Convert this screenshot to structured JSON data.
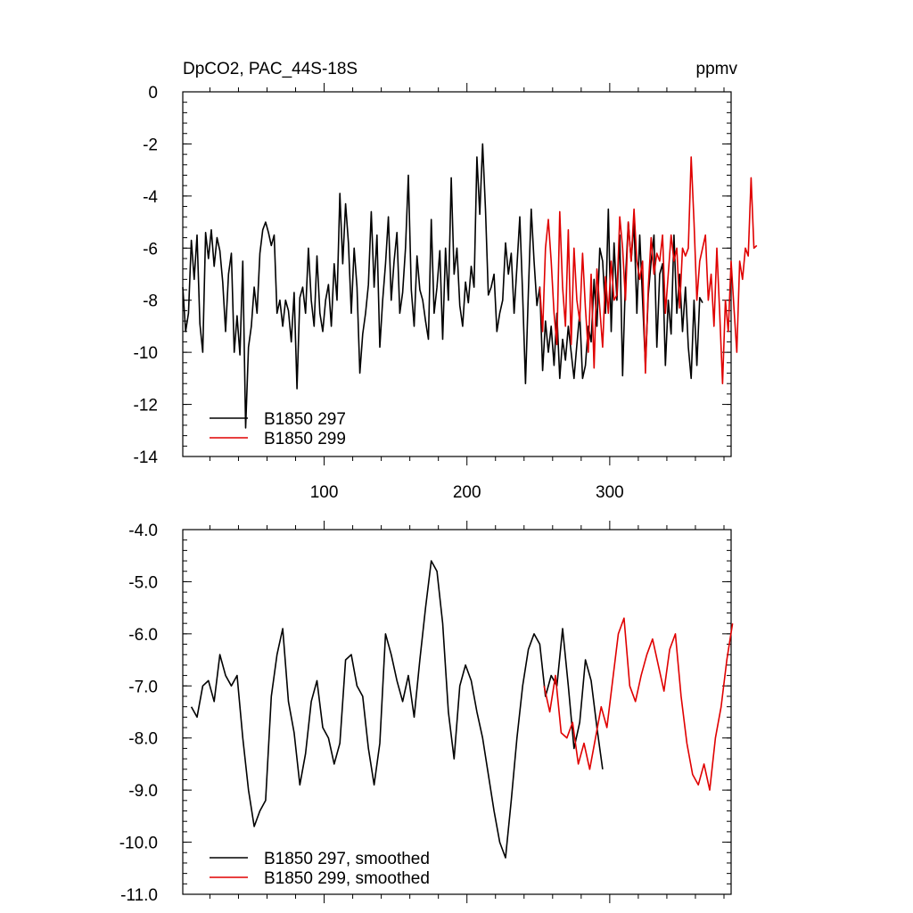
{
  "figure": {
    "title_left": "DpCO2, PAC_44S-18S",
    "title_right": "ppmv"
  },
  "colors": {
    "series_a": "#000000",
    "series_b": "#e00000",
    "axis": "#000000"
  },
  "chart_data": [
    {
      "type": "line",
      "panel": "top",
      "title": "DpCO2, PAC_44S-18S",
      "units": "ppmv",
      "xlim": [
        1,
        385
      ],
      "ylim": [
        -14,
        0
      ],
      "x_ticks": [
        100,
        200,
        300
      ],
      "x_tick_labels": [
        "100",
        "200",
        "300"
      ],
      "y_ticks": [
        0,
        -2,
        -4,
        -6,
        -8,
        -10,
        -12,
        -14
      ],
      "y_tick_labels": [
        "0",
        "-2",
        "-4",
        "-6",
        "-8",
        "-10",
        "-12",
        "-14"
      ],
      "legend_position": "bottom-left",
      "series": [
        {
          "name": "B1850 297",
          "color": "#000000",
          "x_start": 1,
          "x_step": 2,
          "values": [
            -7.5,
            -9.2,
            -8.5,
            -5.7,
            -7.2,
            -5.5,
            -8.9,
            -10.0,
            -5.4,
            -6.4,
            -5.3,
            -6.7,
            -5.6,
            -6.1,
            -7.3,
            -9.2,
            -7.0,
            -6.2,
            -10.0,
            -8.6,
            -10.1,
            -6.5,
            -12.9,
            -9.8,
            -9.0,
            -7.5,
            -8.5,
            -6.2,
            -5.3,
            -5.0,
            -5.4,
            -5.9,
            -5.5,
            -8.5,
            -8.0,
            -9.0,
            -8.0,
            -8.4,
            -9.6,
            -7.7,
            -11.4,
            -7.9,
            -7.5,
            -8.5,
            -6.0,
            -8.0,
            -9.0,
            -6.3,
            -8.5,
            -9.2,
            -8.0,
            -7.4,
            -9.0,
            -6.6,
            -8.0,
            -3.9,
            -6.6,
            -4.3,
            -5.8,
            -8.5,
            -6.0,
            -7.5,
            -10.8,
            -9.3,
            -8.5,
            -7.4,
            -4.6,
            -7.5,
            -5.5,
            -9.8,
            -8.0,
            -6.6,
            -4.8,
            -8.0,
            -6.5,
            -5.4,
            -8.5,
            -7.7,
            -6.0,
            -3.2,
            -7.6,
            -9.0,
            -6.3,
            -7.6,
            -8.0,
            -8.8,
            -9.5,
            -4.9,
            -8.5,
            -7.5,
            -6.1,
            -9.5,
            -6.0,
            -8.0,
            -3.3,
            -7.0,
            -6.0,
            -8.2,
            -9.0,
            -7.3,
            -8.1,
            -6.7,
            -7.5,
            -2.5,
            -4.7,
            -2.0,
            -4.5,
            -7.8,
            -7.5,
            -7.0,
            -9.2,
            -8.5,
            -8.0,
            -5.8,
            -7.0,
            -6.2,
            -8.5,
            -6.7,
            -4.8,
            -7.8,
            -11.2,
            -7.7,
            -4.5,
            -6.5,
            -8.2,
            -7.5,
            -10.7,
            -8.8,
            -10.0,
            -9.0,
            -10.5,
            -8.5,
            -11.0,
            -9.5,
            -10.3,
            -9.0,
            -10.0,
            -11.0,
            -9.7,
            -8.5,
            -11.0,
            -10.5,
            -9.0,
            -9.6,
            -7.2,
            -9.0,
            -6.0,
            -6.5,
            -8.5,
            -4.5,
            -9.2,
            -5.8,
            -8.0,
            -5.5,
            -10.9,
            -7.2,
            -5.0,
            -6.5,
            -5.0,
            -8.5,
            -5.5,
            -8.0,
            -10.5,
            -7.8,
            -6.5,
            -5.5,
            -9.8,
            -7.0,
            -6.6,
            -10.5,
            -8.0,
            -9.3,
            -5.5,
            -8.5,
            -7.0,
            -9.2,
            -7.5,
            -9.8,
            -11.0,
            -8.0,
            -10.5,
            -7.9,
            -8.1
          ]
        },
        {
          "name": "B1850 299",
          "color": "#e00000",
          "x_start": 251,
          "x_step": 2,
          "values": [
            -7.5,
            -9.2,
            -6.0,
            -4.9,
            -6.5,
            -8.5,
            -9.7,
            -4.6,
            -7.5,
            -9.0,
            -5.3,
            -9.7,
            -6.0,
            -8.0,
            -8.8,
            -6.2,
            -8.3,
            -10.0,
            -7.0,
            -10.6,
            -6.8,
            -8.3,
            -9.8,
            -7.1,
            -8.5,
            -6.5,
            -8.0,
            -7.8,
            -4.8,
            -6.0,
            -8.0,
            -5.0,
            -6.5,
            -4.5,
            -6.5,
            -7.2,
            -6.5,
            -10.8,
            -7.5,
            -5.6,
            -7.0,
            -6.2,
            -6.5,
            -5.5,
            -8.5,
            -7.0,
            -5.5,
            -6.5,
            -6.0,
            -8.3,
            -6.0,
            -6.3,
            -6.0,
            -2.5,
            -5.0,
            -8.0,
            -6.5,
            -6.0,
            -5.5,
            -8.0,
            -7.0,
            -9.0,
            -6.0,
            -8.5,
            -11.2,
            -8.0,
            -9.2,
            -6.5,
            -8.3,
            -10.0,
            -6.5,
            -7.2,
            -6.0,
            -6.3,
            -3.3,
            -6.0,
            -5.9
          ]
        }
      ]
    },
    {
      "type": "line",
      "panel": "bottom",
      "xlim": [
        1,
        385
      ],
      "ylim": [
        -11,
        -4
      ],
      "x_ticks": [
        100,
        200,
        300
      ],
      "x_tick_labels": [],
      "y_ticks": [
        -4,
        -5,
        -6,
        -7,
        -8,
        -9,
        -10,
        -11
      ],
      "y_tick_labels": [
        "-4.0",
        "-5.0",
        "-6.0",
        "-7.0",
        "-8.0",
        "-9.0",
        "-10.0",
        "-11.0"
      ],
      "legend_position": "bottom-left",
      "series": [
        {
          "name": "B1850 297, smoothed",
          "color": "#000000",
          "x_start": 7,
          "x_step": 4,
          "values": [
            -7.4,
            -7.6,
            -7.0,
            -6.9,
            -7.3,
            -6.4,
            -6.8,
            -7.0,
            -6.8,
            -8.0,
            -9.0,
            -9.7,
            -9.4,
            -9.2,
            -7.2,
            -6.4,
            -5.9,
            -7.3,
            -7.9,
            -8.9,
            -8.3,
            -7.3,
            -6.9,
            -7.8,
            -8.0,
            -8.5,
            -8.1,
            -6.5,
            -6.4,
            -7.0,
            -7.2,
            -8.2,
            -8.9,
            -8.1,
            -6.0,
            -6.4,
            -6.9,
            -7.3,
            -6.8,
            -7.6,
            -6.5,
            -5.5,
            -4.6,
            -4.8,
            -5.8,
            -7.5,
            -8.4,
            -7.0,
            -6.6,
            -6.9,
            -7.5,
            -8.0,
            -8.7,
            -9.4,
            -10.0,
            -10.3,
            -9.2,
            -8.0,
            -7.0,
            -6.3,
            -6.0,
            -6.2,
            -7.2,
            -6.8,
            -7.0,
            -5.9,
            -7.0,
            -8.2,
            -7.7,
            -6.5,
            -6.9,
            -7.8,
            -8.6
          ]
        },
        {
          "name": "B1850 299, smoothed",
          "color": "#e00000",
          "x_start": 254,
          "x_step": 4,
          "values": [
            -7.0,
            -7.5,
            -6.8,
            -7.9,
            -8.0,
            -7.7,
            -8.5,
            -8.1,
            -8.6,
            -8.0,
            -7.4,
            -7.8,
            -6.9,
            -6.0,
            -5.7,
            -7.0,
            -7.3,
            -6.8,
            -6.4,
            -6.1,
            -6.6,
            -7.1,
            -6.3,
            -6.0,
            -7.2,
            -8.1,
            -8.7,
            -8.9,
            -8.5,
            -9.0,
            -8.0,
            -7.4,
            -6.5,
            -5.8
          ]
        }
      ]
    }
  ]
}
